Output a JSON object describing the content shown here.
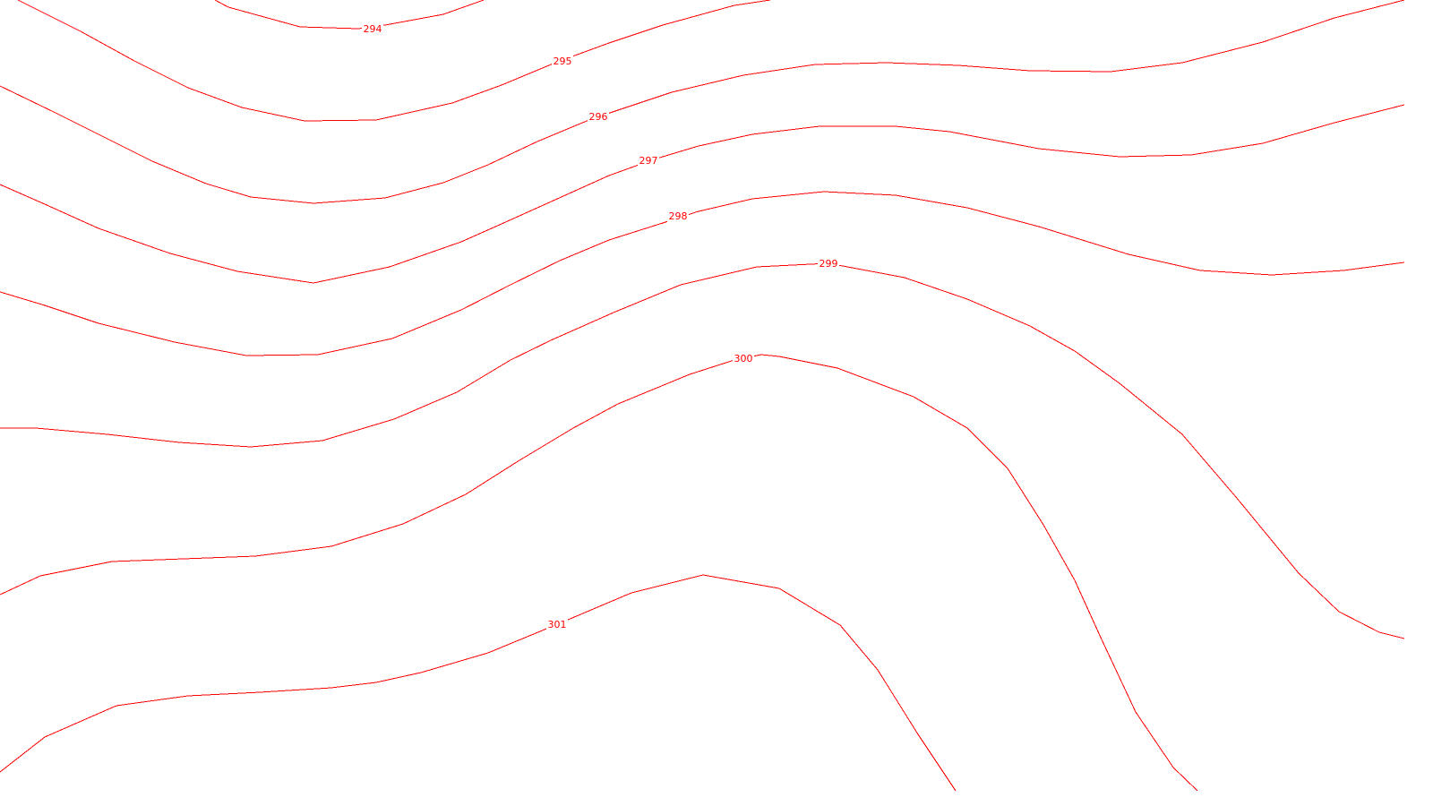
{
  "chart_data": {
    "type": "contour",
    "line_color": "#ff0000",
    "background": "#ffffff",
    "grid": false,
    "legend": "none",
    "levels": [
      {
        "value": 294,
        "label": "294"
      },
      {
        "value": 295,
        "label": "295"
      },
      {
        "value": 296,
        "label": "296"
      },
      {
        "value": 297,
        "label": "297"
      },
      {
        "value": 298,
        "label": "298"
      },
      {
        "value": 299,
        "label": "299"
      },
      {
        "value": 300,
        "label": "300"
      },
      {
        "value": 301,
        "label": "301"
      }
    ]
  }
}
